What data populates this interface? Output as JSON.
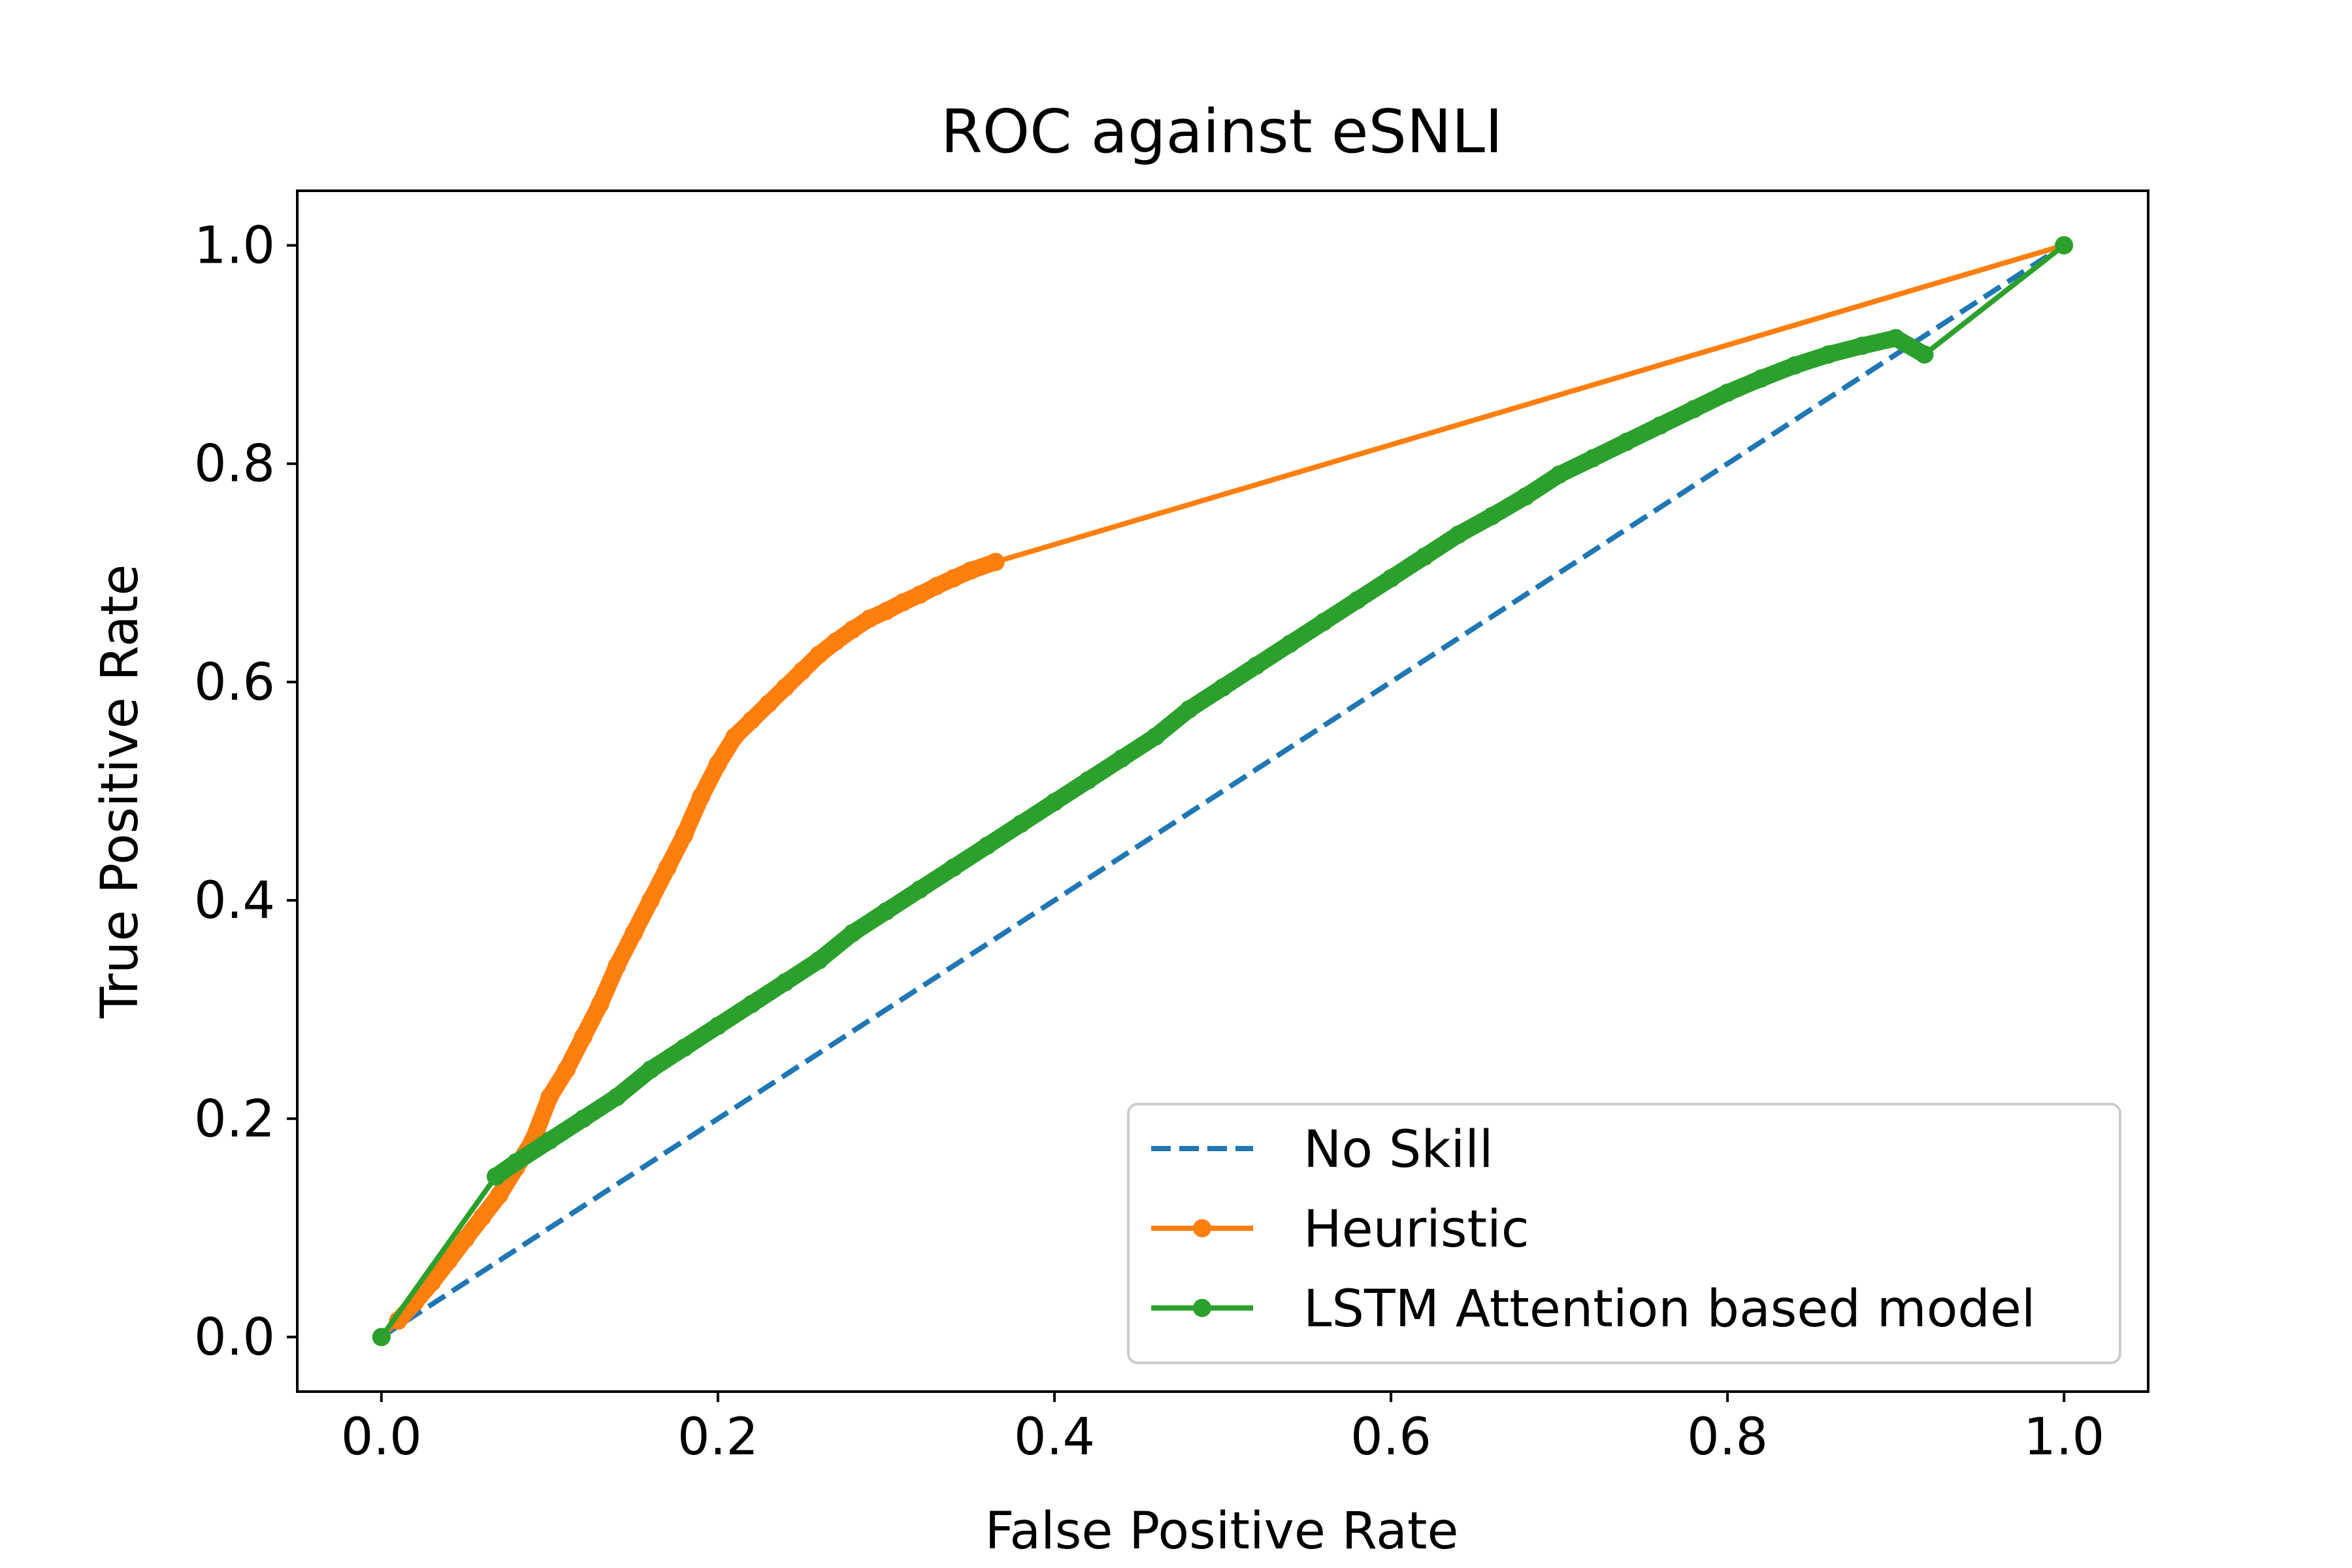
{
  "chart_data": {
    "type": "line",
    "title": "ROC against eSNLI",
    "xlabel": "False Positive Rate",
    "ylabel": "True Positive Rate",
    "xlim": [
      -0.05,
      1.05
    ],
    "ylim": [
      -0.05,
      1.05
    ],
    "xticks": [
      "0.0",
      "0.2",
      "0.4",
      "0.6",
      "0.8",
      "1.0"
    ],
    "yticks": [
      "0.0",
      "0.2",
      "0.4",
      "0.6",
      "0.8",
      "1.0"
    ],
    "xtick_values": [
      0.0,
      0.2,
      0.4,
      0.6,
      0.8,
      1.0
    ],
    "ytick_values": [
      0.0,
      0.2,
      0.4,
      0.6,
      0.8,
      1.0
    ],
    "grid": false,
    "legend_position": "lower-right",
    "series": [
      {
        "name": "No Skill",
        "color": "#1f77b4",
        "style": "dashed",
        "markers": false,
        "points": [
          [
            0.0,
            0.0
          ],
          [
            1.0,
            1.0
          ]
        ]
      },
      {
        "name": "Heuristic",
        "color": "#ff7f0e",
        "style": "solid",
        "markers": true,
        "points": [
          [
            0.0,
            0.0
          ],
          [
            0.01,
            0.015
          ],
          [
            0.02,
            0.032
          ],
          [
            0.03,
            0.05
          ],
          [
            0.04,
            0.07
          ],
          [
            0.05,
            0.09
          ],
          [
            0.06,
            0.11
          ],
          [
            0.07,
            0.13
          ],
          [
            0.08,
            0.155
          ],
          [
            0.09,
            0.18
          ],
          [
            0.1,
            0.22
          ],
          [
            0.11,
            0.245
          ],
          [
            0.12,
            0.275
          ],
          [
            0.13,
            0.305
          ],
          [
            0.14,
            0.34
          ],
          [
            0.15,
            0.37
          ],
          [
            0.16,
            0.4
          ],
          [
            0.17,
            0.43
          ],
          [
            0.18,
            0.46
          ],
          [
            0.19,
            0.495
          ],
          [
            0.2,
            0.525
          ],
          [
            0.21,
            0.55
          ],
          [
            0.22,
            0.565
          ],
          [
            0.23,
            0.58
          ],
          [
            0.24,
            0.595
          ],
          [
            0.25,
            0.61
          ],
          [
            0.26,
            0.625
          ],
          [
            0.27,
            0.637
          ],
          [
            0.28,
            0.648
          ],
          [
            0.29,
            0.658
          ],
          [
            0.3,
            0.665
          ],
          [
            0.31,
            0.673
          ],
          [
            0.32,
            0.68
          ],
          [
            0.33,
            0.688
          ],
          [
            0.34,
            0.695
          ],
          [
            0.35,
            0.702
          ],
          [
            0.365,
            0.71
          ],
          [
            1.0,
            1.0
          ]
        ]
      },
      {
        "name": "LSTM Attention based model",
        "color": "#2ca02c",
        "style": "solid",
        "markers": true,
        "points": [
          [
            0.0,
            0.0
          ],
          [
            0.068,
            0.147
          ],
          [
            0.08,
            0.16
          ],
          [
            0.1,
            0.18
          ],
          [
            0.12,
            0.2
          ],
          [
            0.14,
            0.22
          ],
          [
            0.16,
            0.245
          ],
          [
            0.18,
            0.265
          ],
          [
            0.2,
            0.285
          ],
          [
            0.22,
            0.305
          ],
          [
            0.24,
            0.325
          ],
          [
            0.26,
            0.345
          ],
          [
            0.28,
            0.37
          ],
          [
            0.3,
            0.39
          ],
          [
            0.32,
            0.41
          ],
          [
            0.34,
            0.43
          ],
          [
            0.36,
            0.45
          ],
          [
            0.38,
            0.47
          ],
          [
            0.4,
            0.49
          ],
          [
            0.42,
            0.51
          ],
          [
            0.44,
            0.53
          ],
          [
            0.46,
            0.55
          ],
          [
            0.48,
            0.575
          ],
          [
            0.5,
            0.595
          ],
          [
            0.52,
            0.615
          ],
          [
            0.54,
            0.635
          ],
          [
            0.56,
            0.655
          ],
          [
            0.58,
            0.675
          ],
          [
            0.6,
            0.695
          ],
          [
            0.62,
            0.715
          ],
          [
            0.64,
            0.735
          ],
          [
            0.66,
            0.752
          ],
          [
            0.68,
            0.77
          ],
          [
            0.7,
            0.79
          ],
          [
            0.72,
            0.805
          ],
          [
            0.74,
            0.82
          ],
          [
            0.76,
            0.835
          ],
          [
            0.78,
            0.85
          ],
          [
            0.8,
            0.865
          ],
          [
            0.82,
            0.878
          ],
          [
            0.84,
            0.89
          ],
          [
            0.86,
            0.9
          ],
          [
            0.88,
            0.908
          ],
          [
            0.9,
            0.915
          ],
          [
            0.917,
            0.9
          ],
          [
            1.0,
            1.0
          ]
        ]
      }
    ]
  }
}
